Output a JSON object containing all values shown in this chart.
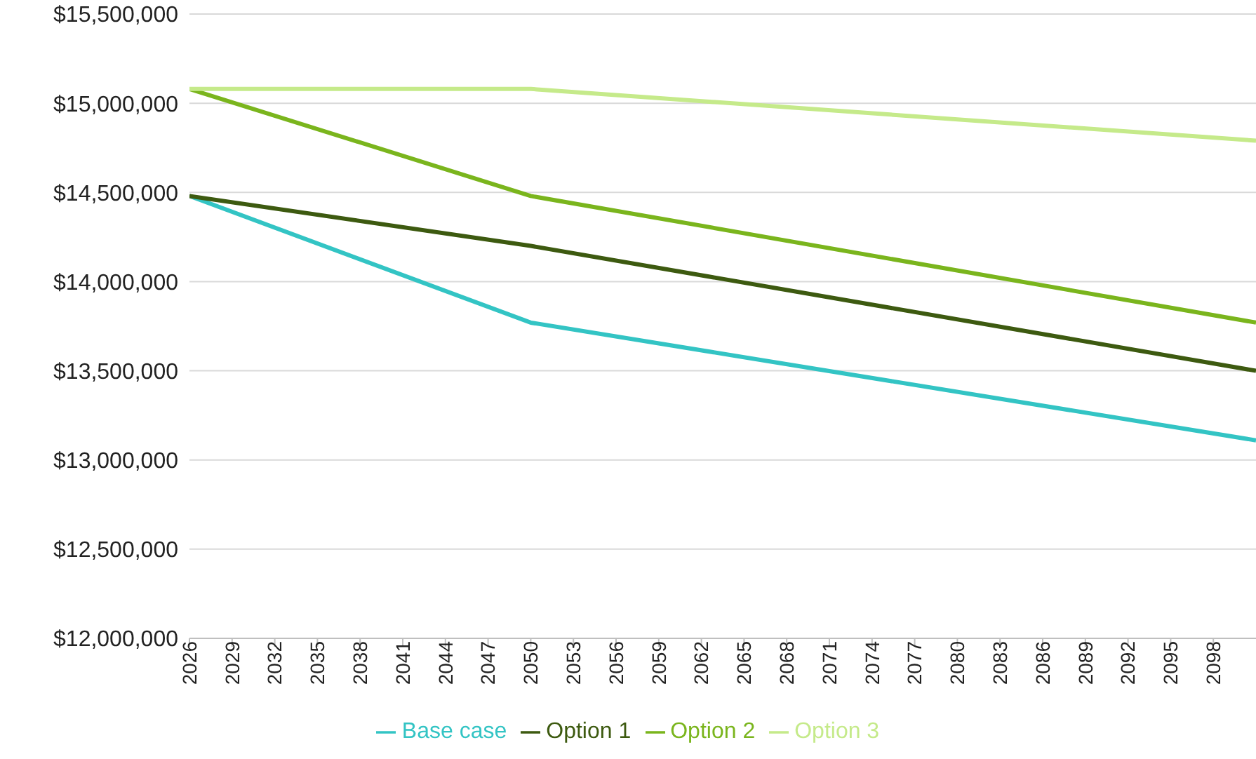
{
  "chart_data": {
    "type": "line",
    "x": [
      2026,
      2050,
      2101
    ],
    "series": [
      {
        "name": "Base case",
        "color": "#33c4c4",
        "values": [
          14480000,
          13770000,
          13110000
        ]
      },
      {
        "name": "Option 1",
        "color": "#3d5a10",
        "values": [
          14480000,
          14200000,
          13500000
        ]
      },
      {
        "name": "Option 2",
        "color": "#7ab51d",
        "values": [
          15080000,
          14480000,
          13770000
        ]
      },
      {
        "name": "Option 3",
        "color": "#c5ea8a",
        "values": [
          15080000,
          15080000,
          14790000
        ]
      }
    ],
    "xlim": [
      2026,
      2101
    ],
    "xticks": [
      2026,
      2029,
      2032,
      2035,
      2038,
      2041,
      2044,
      2047,
      2050,
      2053,
      2056,
      2059,
      2062,
      2065,
      2068,
      2071,
      2074,
      2077,
      2080,
      2083,
      2086,
      2089,
      2092,
      2095,
      2098
    ],
    "ylim": [
      12000000,
      15500000
    ],
    "yticks": [
      {
        "value": 12000000,
        "label": "$12,000,000"
      },
      {
        "value": 12500000,
        "label": "$12,500,000"
      },
      {
        "value": 13000000,
        "label": "$13,000,000"
      },
      {
        "value": 13500000,
        "label": "$13,500,000"
      },
      {
        "value": 14000000,
        "label": "$14,000,000"
      },
      {
        "value": 14500000,
        "label": "$14,500,000"
      },
      {
        "value": 15000000,
        "label": "$15,000,000"
      },
      {
        "value": 15500000,
        "label": "$15,500,000"
      }
    ],
    "grid": "y",
    "legend": "bottom",
    "marker": "none",
    "line_style": "solid"
  }
}
